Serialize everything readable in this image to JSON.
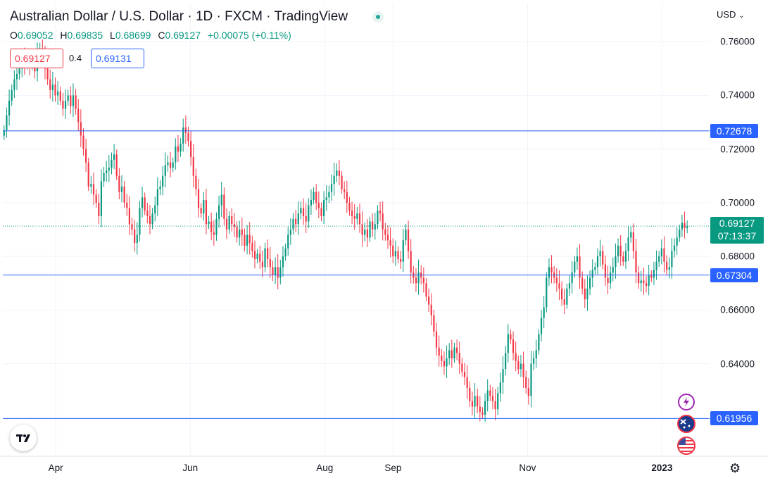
{
  "header": {
    "title": "Australian Dollar / U.S. Dollar · 1D · FXCM · TradingView",
    "ohlc": {
      "o_label": "O",
      "o_value": "0.69052",
      "h_label": "H",
      "h_value": "0.69835",
      "l_label": "L",
      "l_value": "0.68699",
      "c_label": "C",
      "c_value": "0.69127",
      "change": "+0.00075 (+0.11%)"
    },
    "sell_price": "0.69127",
    "spread": "0.4",
    "buy_price": "0.69131",
    "currency": "USD"
  },
  "colors": {
    "up": "#089981",
    "down": "#f23645",
    "hline": "#2962ff",
    "grid": "#f0f3fa"
  },
  "chart_data": {
    "type": "candlestick",
    "symbol": "AUDUSD",
    "interval": "1D",
    "ylim": [
      0.6055,
      0.7745
    ],
    "yticks": [
      "0.76000",
      "0.74000",
      "0.72000",
      "0.70000",
      "0.68000",
      "0.66000",
      "0.64000"
    ],
    "x_ticks": [
      {
        "label": "Apr",
        "date": "2022-04-01"
      },
      {
        "label": "Jun",
        "date": "2022-06-01"
      },
      {
        "label": "Aug",
        "date": "2022-08-01"
      },
      {
        "label": "Sep",
        "date": "2022-09-01"
      },
      {
        "label": "Nov",
        "date": "2022-11-01"
      },
      {
        "label": "2023",
        "date": "2023-01-01",
        "bold": true
      }
    ],
    "date_range": [
      "2022-03-08",
      "2023-01-13"
    ],
    "horizontal_lines": [
      {
        "value": 0.72678,
        "label": "0.72678"
      },
      {
        "value": 0.67304,
        "label": "0.67304"
      },
      {
        "value": 0.61956,
        "label": "0.61956"
      }
    ],
    "last_price": {
      "value": 0.69127,
      "label": "0.69127",
      "countdown": "07:13:37"
    },
    "closes": [
      0.727,
      0.7325,
      0.738,
      0.742,
      0.746,
      0.748,
      0.75,
      0.753,
      0.752,
      0.7535,
      0.751,
      0.754,
      0.749,
      0.7555,
      0.7575,
      0.754,
      0.75,
      0.746,
      0.742,
      0.744,
      0.74,
      0.7415,
      0.738,
      0.735,
      0.738,
      0.74,
      0.736,
      0.74,
      0.735,
      0.73,
      0.725,
      0.72,
      0.715,
      0.706,
      0.707,
      0.703,
      0.7,
      0.695,
      0.708,
      0.711,
      0.712,
      0.713,
      0.716,
      0.718,
      0.71,
      0.704,
      0.706,
      0.7,
      0.698,
      0.692,
      0.69,
      0.685,
      0.688,
      0.698,
      0.702,
      0.697,
      0.695,
      0.692,
      0.696,
      0.699,
      0.705,
      0.706,
      0.71,
      0.714,
      0.715,
      0.713,
      0.715,
      0.721,
      0.719,
      0.722,
      0.728,
      0.726,
      0.723,
      0.717,
      0.71,
      0.705,
      0.698,
      0.696,
      0.701,
      0.692,
      0.693,
      0.689,
      0.688,
      0.694,
      0.699,
      0.703,
      0.694,
      0.69,
      0.695,
      0.692,
      0.691,
      0.687,
      0.69,
      0.688,
      0.684,
      0.688,
      0.685,
      0.682,
      0.679,
      0.681,
      0.678,
      0.676,
      0.683,
      0.679,
      0.676,
      0.673,
      0.676,
      0.672,
      0.676,
      0.68,
      0.683,
      0.688,
      0.69,
      0.694,
      0.692,
      0.696,
      0.698,
      0.695,
      0.693,
      0.699,
      0.701,
      0.704,
      0.7,
      0.698,
      0.695,
      0.701,
      0.702,
      0.704,
      0.707,
      0.71,
      0.712,
      0.71,
      0.705,
      0.704,
      0.7,
      0.697,
      0.695,
      0.694,
      0.696,
      0.692,
      0.688,
      0.69,
      0.687,
      0.693,
      0.69,
      0.692,
      0.697,
      0.696,
      0.69,
      0.688,
      0.686,
      0.684,
      0.68,
      0.682,
      0.679,
      0.678,
      0.686,
      0.69,
      0.682,
      0.674,
      0.672,
      0.67,
      0.674,
      0.672,
      0.67,
      0.665,
      0.662,
      0.658,
      0.652,
      0.646,
      0.643,
      0.641,
      0.639,
      0.642,
      0.645,
      0.642,
      0.646,
      0.644,
      0.64,
      0.637,
      0.635,
      0.631,
      0.626,
      0.624,
      0.628,
      0.624,
      0.622,
      0.621,
      0.626,
      0.63,
      0.628,
      0.626,
      0.623,
      0.629,
      0.633,
      0.638,
      0.644,
      0.651,
      0.649,
      0.644,
      0.641,
      0.638,
      0.64,
      0.635,
      0.631,
      0.628,
      0.64,
      0.642,
      0.645,
      0.651,
      0.657,
      0.661,
      0.672,
      0.676,
      0.674,
      0.672,
      0.67,
      0.668,
      0.664,
      0.662,
      0.668,
      0.67,
      0.674,
      0.678,
      0.68,
      0.672,
      0.668,
      0.664,
      0.668,
      0.672,
      0.675,
      0.676,
      0.68,
      0.682,
      0.677,
      0.672,
      0.67,
      0.674,
      0.676,
      0.68,
      0.684,
      0.68,
      0.678,
      0.682,
      0.687,
      0.689,
      0.682,
      0.674,
      0.67,
      0.671,
      0.67,
      0.669,
      0.673,
      0.672,
      0.675,
      0.678,
      0.68,
      0.683,
      0.678,
      0.675,
      0.676,
      0.682,
      0.684,
      0.687,
      0.69,
      0.6925,
      0.6905,
      0.6913
    ]
  },
  "icons": {
    "tv_logo": "tradingview-logo-icon",
    "lightning": "lightning-event-icon",
    "au_flag": "au-flag-icon",
    "us_flag": "us-flag-icon",
    "settings": "gear-icon"
  }
}
